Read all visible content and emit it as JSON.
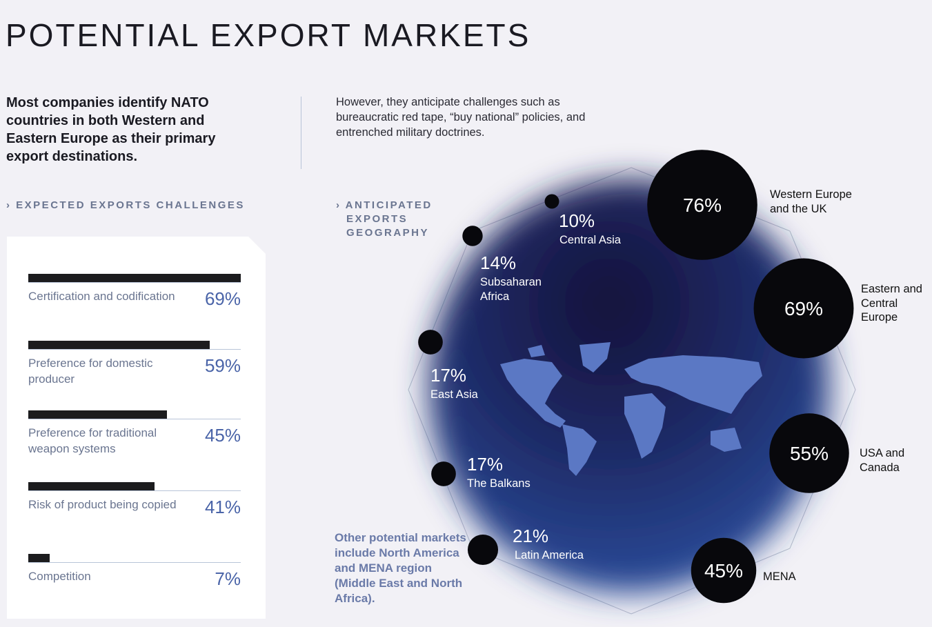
{
  "title": "POTENTIAL EXPORT MARKETS",
  "intro": "Most companies identify NATO countries in both Western and Eastern Europe as their primary export destinations.",
  "note": "However, they anticipate challenges such as bureaucratic red tape, “buy national” policies, and entrenched military doctrines.",
  "footnote": "Other potential markets include North America and MENA region (Middle East and North Africa).",
  "chart_data": [
    {
      "type": "bar",
      "title": "EXPECTED EXPORTS CHALLENGES",
      "categories": [
        "Certification and codification",
        "Preference for domestic producer",
        "Preference for traditional weapon systems",
        "Risk of product being copied",
        "Competition"
      ],
      "values": [
        69,
        59,
        45,
        41,
        7
      ],
      "value_labels": [
        "69%",
        "59%",
        "45%",
        "41%",
        "7%"
      ],
      "xlim": [
        0,
        69
      ],
      "color": "#1c1c1e"
    },
    {
      "type": "bubble",
      "title": "ANTICIPATED EXPORTS GEOGRAPHY",
      "categories": [
        "Western Europe and the UK",
        "Eastern and Central Europe",
        "USA and Canada",
        "MENA",
        "Latin America",
        "The Balkans",
        "East Asia",
        "Subsaharan Africa",
        "Central Asia"
      ],
      "values": [
        76,
        69,
        55,
        45,
        21,
        17,
        17,
        14,
        10
      ],
      "value_labels": [
        "76%",
        "69%",
        "55%",
        "45%",
        "21%",
        "17%",
        "17%",
        "14%",
        "10%"
      ],
      "color": "#08080c"
    }
  ]
}
